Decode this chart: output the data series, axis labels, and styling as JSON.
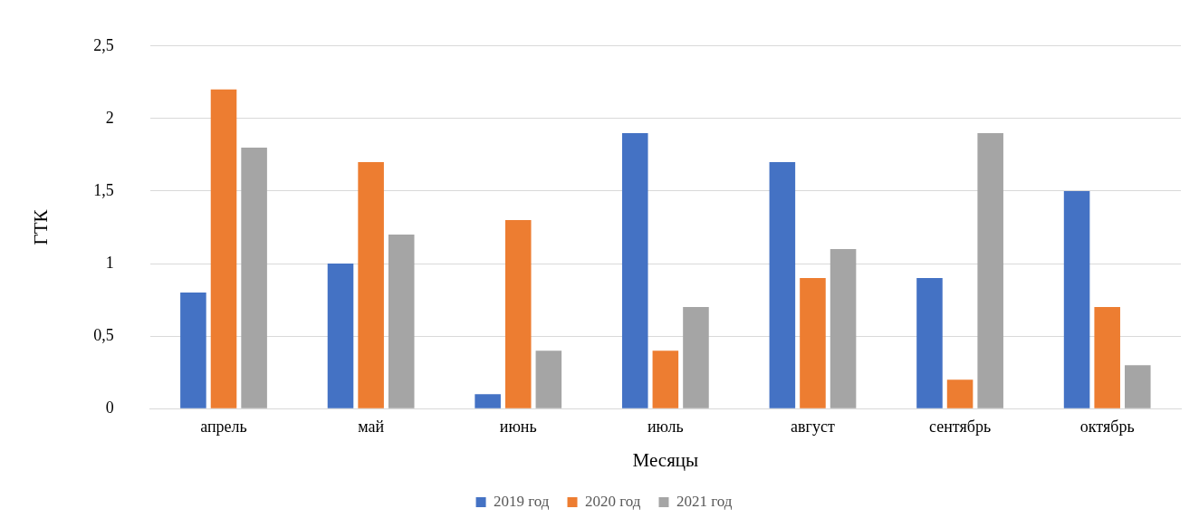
{
  "chart_data": {
    "type": "bar",
    "xlabel": "Месяцы",
    "ylabel": "ГТК",
    "categories": [
      "апрель",
      "май",
      "июнь",
      "июль",
      "август",
      "сентябрь",
      "октябрь"
    ],
    "series": [
      {
        "name": "2019 год",
        "color": "#4472c4",
        "values": [
          0.8,
          1.0,
          0.1,
          1.9,
          1.7,
          0.9,
          1.5
        ]
      },
      {
        "name": "2020 год",
        "color": "#ed7d31",
        "values": [
          2.2,
          1.7,
          1.3,
          0.4,
          0.9,
          0.2,
          0.7
        ]
      },
      {
        "name": "2021 год",
        "color": "#a5a5a5",
        "values": [
          1.8,
          1.2,
          0.4,
          0.7,
          1.1,
          1.9,
          0.3
        ]
      }
    ],
    "ylim": [
      0,
      2.5
    ],
    "yticks": [
      0,
      {
        "value": 0.5,
        "label": "0,5"
      },
      1,
      {
        "value": 1.5,
        "label": "1,5"
      },
      2,
      {
        "value": 2.5,
        "label": "2,5"
      }
    ],
    "grid": "y",
    "legend": "bottom"
  }
}
